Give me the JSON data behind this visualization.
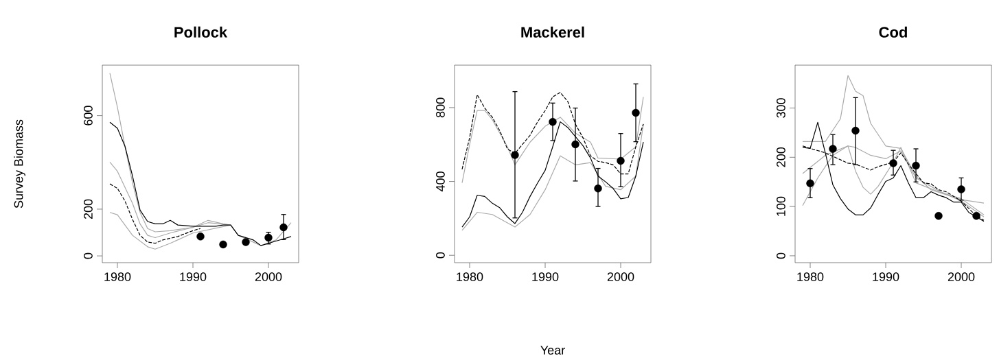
{
  "chart_data": [
    {
      "type": "line",
      "title": "Pollock",
      "ylabel": "Survey Biomass",
      "xlim": [
        1978,
        2004
      ],
      "ylim": [
        -29,
        816
      ],
      "xticks": [
        1980,
        1990,
        2000
      ],
      "yticks": [
        0,
        200,
        600
      ],
      "series": [
        {
          "type": "line",
          "color": "#aaaaaa",
          "line_style": "solid",
          "x": [
            1979,
            1980,
            1981,
            1982,
            1983,
            1984,
            1985,
            1987,
            1990,
            1992,
            1994,
            1995,
            1996,
            1999,
            2001,
            2003
          ],
          "values": [
            782,
            636,
            469,
            313,
            186,
            117,
            103,
            108,
            122,
            152,
            137,
            132,
            88,
            44,
            68,
            142
          ]
        },
        {
          "type": "line",
          "color": "#aaaaaa",
          "line_style": "solid",
          "x": [
            1979,
            1980,
            1982,
            1983,
            1984,
            1985,
            1987,
            1990,
            1992,
            1995
          ],
          "values": [
            401,
            362,
            225,
            137,
            88,
            78,
            98,
            122,
            142,
            132
          ]
        },
        {
          "type": "line",
          "color": "#aaaaaa",
          "line_style": "solid",
          "x": [
            1979,
            1980,
            1982,
            1984,
            1985,
            1987,
            1990,
            1995
          ],
          "values": [
            186,
            176,
            88,
            39,
            29,
            54,
            98,
            132
          ]
        },
        {
          "type": "line",
          "color": "#000000",
          "line_style": "dashed",
          "x": [
            1979,
            1980,
            1981,
            1982,
            1983,
            1984,
            1985,
            1986,
            1988,
            1990,
            1991
          ],
          "values": [
            308,
            289,
            235,
            156,
            88,
            59,
            54,
            68,
            83,
            108,
            117
          ]
        },
        {
          "type": "line",
          "color": "#000000",
          "line_style": "solid",
          "x": [
            1979,
            1980,
            1981,
            1982,
            1983,
            1984,
            1985,
            1986,
            1987,
            1988,
            1990,
            1993,
            1994,
            1995,
            1996,
            1998,
            1999,
            2000,
            2002,
            2003
          ],
          "values": [
            572,
            546,
            469,
            342,
            196,
            147,
            137,
            137,
            152,
            132,
            127,
            127,
            132,
            132,
            88,
            68,
            44,
            54,
            73,
            83
          ]
        },
        {
          "type": "scatter",
          "color": "#000000",
          "x": [
            1991,
            1994,
            1997,
            2000,
            2002
          ],
          "values": [
            83,
            49,
            59,
            78,
            122
          ],
          "errors": [
            null,
            null,
            null,
            [
              49,
              103
            ],
            [
              68,
              179
            ]
          ]
        }
      ]
    },
    {
      "type": "line",
      "title": "Mackerel",
      "xlabel": "Year",
      "xlim": [
        1978,
        2004
      ],
      "ylim": [
        -40,
        1030
      ],
      "xticks": [
        1980,
        1990,
        2000
      ],
      "yticks": [
        0,
        400,
        800
      ],
      "series": [
        {
          "type": "line",
          "color": "#aaaaaa",
          "line_style": "solid",
          "x": [
            1979,
            1980,
            1981,
            1982,
            1983,
            1985,
            1986,
            1988,
            1990,
            1992,
            1994,
            1996,
            1997,
            2000,
            2002,
            2003
          ],
          "values": [
            392,
            600,
            784,
            784,
            735,
            588,
            490,
            613,
            699,
            748,
            662,
            613,
            527,
            521,
            588,
            858
          ]
        },
        {
          "type": "line",
          "color": "#aaaaaa",
          "line_style": "solid",
          "x": [
            1979,
            1981,
            1983,
            1986,
            1988,
            1990,
            1992,
            1994,
            1996,
            1998,
            2000,
            2002,
            2003
          ],
          "values": [
            135,
            233,
            221,
            153,
            221,
            355,
            539,
            490,
            502,
            374,
            355,
            429,
            711
          ]
        },
        {
          "type": "line",
          "color": "#000000",
          "line_style": "dashed",
          "x": [
            1979,
            1980,
            1981,
            1982,
            1983,
            1984,
            1985,
            1986,
            1987,
            1988,
            1989,
            1990,
            1991,
            1992,
            1993,
            1994,
            1995,
            1996,
            1997,
            1998,
            1999,
            2000,
            2001,
            2002,
            2003
          ],
          "values": [
            466,
            637,
            870,
            797,
            748,
            674,
            576,
            552,
            601,
            650,
            723,
            784,
            858,
            882,
            833,
            711,
            637,
            539,
            509,
            502,
            490,
            441,
            441,
            588,
            711
          ]
        },
        {
          "type": "line",
          "color": "#000000",
          "line_style": "solid",
          "x": [
            1979,
            1980,
            1981,
            1982,
            1983,
            1984,
            1985,
            1986,
            1987,
            1988,
            1989,
            1990,
            1991,
            1992,
            1993,
            1994,
            1995,
            1996,
            1997,
            1998,
            1999,
            2000,
            2001,
            2002,
            2003
          ],
          "values": [
            153,
            208,
            325,
            319,
            282,
            257,
            208,
            172,
            233,
            319,
            392,
            460,
            588,
            723,
            692,
            643,
            594,
            527,
            429,
            398,
            362,
            306,
            313,
            429,
            613
          ]
        },
        {
          "type": "scatter",
          "color": "#000000",
          "x": [
            1986,
            1991,
            1994,
            1997,
            2000,
            2002
          ],
          "values": [
            543,
            723,
            601,
            362,
            512,
            772
          ],
          "errors": [
            [
              200,
              889
            ],
            [
              619,
              827
            ],
            [
              400,
              800
            ],
            [
              262,
              473
            ],
            [
              369,
              662
            ],
            [
              613,
              931
            ]
          ]
        }
      ]
    },
    {
      "type": "line",
      "title": "Cod",
      "xlim": [
        1978,
        2004
      ],
      "ylim": [
        -14,
        387
      ],
      "xticks": [
        1980,
        1990,
        2000
      ],
      "yticks": [
        0,
        100,
        200,
        300
      ],
      "series": [
        {
          "type": "line",
          "color": "#aaaaaa",
          "line_style": "solid",
          "x": [
            1979,
            1982,
            1984,
            1985,
            1986,
            1987,
            1988,
            1990,
            1992,
            1994,
            1996,
            2000,
            2003
          ],
          "values": [
            232,
            232,
            278,
            366,
            334,
            325,
            269,
            223,
            218,
            162,
            134,
            114,
            107
          ]
        },
        {
          "type": "line",
          "color": "#aaaaaa",
          "line_style": "solid",
          "x": [
            1979,
            1981,
            1983,
            1985,
            1986,
            1987,
            1988,
            1989,
            1991,
            1992,
            1994,
            1997,
            2000,
            2003
          ],
          "values": [
            102,
            158,
            204,
            223,
            172,
            139,
            125,
            141,
            190,
            220,
            148,
            130,
            116,
            83
          ]
        },
        {
          "type": "line",
          "color": "#aaaaaa",
          "line_style": "solid",
          "x": [
            1979,
            1982,
            1985,
            1986,
            1988,
            1990,
            1992,
            1994,
            1997,
            2000,
            2003
          ],
          "values": [
            167,
            204,
            223,
            220,
            204,
            197,
            213,
            158,
            132,
            111,
            79
          ]
        },
        {
          "type": "line",
          "color": "#000000",
          "line_style": "dashed",
          "x": [
            1979,
            1980,
            1982,
            1985,
            1986,
            1988,
            1989,
            1991,
            1992,
            1993,
            1995,
            1996,
            1997,
            1998,
            2000,
            2002,
            2003
          ],
          "values": [
            223,
            218,
            209,
            188,
            186,
            174,
            181,
            190,
            209,
            186,
            148,
            146,
            134,
            130,
            111,
            81,
            72
          ]
        },
        {
          "type": "line",
          "color": "#000000",
          "line_style": "solid",
          "x": [
            1979,
            1980,
            1981,
            1982,
            1983,
            1984,
            1985,
            1986,
            1987,
            1988,
            1989,
            1990,
            1991,
            1992,
            1993,
            1994,
            1995,
            1996,
            1997,
            1998,
            1999,
            2000,
            2001,
            2002,
            2003
          ],
          "values": [
            220,
            218,
            271,
            209,
            144,
            116,
            95,
            83,
            83,
            97,
            125,
            151,
            158,
            183,
            148,
            118,
            118,
            130,
            123,
            118,
            109,
            109,
            88,
            79,
            70
          ]
        },
        {
          "type": "scatter",
          "color": "#000000",
          "x": [
            1980,
            1983,
            1986,
            1991,
            1994,
            1997,
            2000,
            2002
          ],
          "values": [
            147,
            217,
            254,
            188,
            183,
            81,
            135,
            81
          ],
          "errors": [
            [
              117,
              178
            ],
            [
              184,
              247
            ],
            [
              184,
              322
            ],
            [
              163,
              215
            ],
            [
              149,
              218
            ],
            null,
            [
              112,
              159
            ],
            null
          ]
        }
      ]
    }
  ]
}
